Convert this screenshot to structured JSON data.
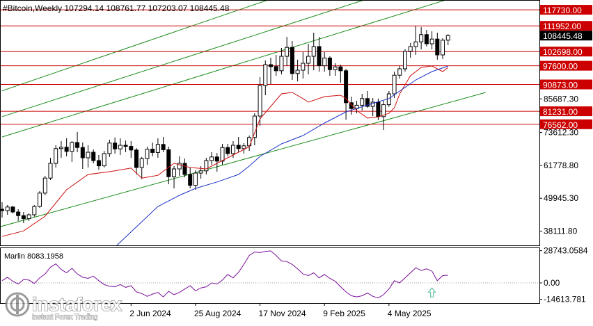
{
  "chart_data": {
    "type": "candlestick",
    "symbol": "#Bitcoin,Weekly",
    "ohlc_readout": "107294.14 108761.77 107203.07 108445.48",
    "price_axis": {
      "range": [
        33000,
        121000
      ],
      "ticks": [
        38111.8,
        49945.3,
        61778.8,
        73612.3,
        85687.3
      ]
    },
    "time_labels": [
      "2 Jun 2024",
      "25 Aug 2024",
      "17 Nov 2024",
      "9 Feb 2025",
      "4 May 2025"
    ],
    "levels": [
      {
        "label": "117730.00",
        "value": 117730
      },
      {
        "label": "111952.00",
        "value": 111952
      },
      {
        "label": "102698.00",
        "value": 102698
      },
      {
        "label": "97600.00",
        "value": 97600
      },
      {
        "label": "90873.00",
        "value": 90873
      },
      {
        "label": "81231.00",
        "value": 81231
      },
      {
        "label": "76562.00",
        "value": 76562
      }
    ],
    "current_price": "108445.48",
    "candles": [
      [
        46000,
        48500,
        43000,
        45500
      ],
      [
        45500,
        47500,
        44000,
        46800
      ],
      [
        46800,
        47200,
        44500,
        45000
      ],
      [
        45000,
        46000,
        41800,
        43700
      ],
      [
        43700,
        45000,
        41000,
        42600
      ],
      [
        42600,
        44500,
        41800,
        44000
      ],
      [
        44000,
        47500,
        43300,
        47000
      ],
      [
        47000,
        52500,
        46500,
        51800
      ],
      [
        51800,
        58000,
        51000,
        57200
      ],
      [
        57200,
        64500,
        56500,
        62500
      ],
      [
        62500,
        69000,
        61000,
        67800
      ],
      [
        67800,
        70500,
        64500,
        68300
      ],
      [
        68300,
        71500,
        65000,
        66800
      ],
      [
        66800,
        70500,
        63000,
        70000
      ],
      [
        70000,
        73800,
        66500,
        68200
      ],
      [
        68200,
        70000,
        60500,
        64500
      ],
      [
        64500,
        69000,
        61000,
        66500
      ],
      [
        66500,
        67500,
        62500,
        63500
      ],
      [
        63500,
        65500,
        60200,
        61600
      ],
      [
        61600,
        67000,
        61000,
        66000
      ],
      [
        66000,
        71000,
        64800,
        69800
      ],
      [
        69800,
        71800,
        66000,
        67700
      ],
      [
        67700,
        71500,
        65500,
        69000
      ],
      [
        69000,
        70700,
        66500,
        68600
      ],
      [
        68600,
        70500,
        64500,
        67300
      ],
      [
        67300,
        68000,
        58500,
        61000
      ],
      [
        61000,
        64800,
        56800,
        64200
      ],
      [
        64200,
        68500,
        62000,
        67600
      ],
      [
        67600,
        70000,
        65000,
        66400
      ],
      [
        66400,
        71500,
        64500,
        69300
      ],
      [
        69300,
        72000,
        66500,
        67400
      ],
      [
        67400,
        68500,
        55000,
        57700
      ],
      [
        57700,
        61500,
        53500,
        60500
      ],
      [
        60500,
        65000,
        58000,
        62500
      ],
      [
        62500,
        64200,
        57500,
        58500
      ],
      [
        58500,
        61000,
        53500,
        54600
      ],
      [
        54600,
        60000,
        53000,
        59000
      ],
      [
        59000,
        61500,
        57000,
        59800
      ],
      [
        59800,
        64500,
        58500,
        63500
      ],
      [
        63500,
        66500,
        62000,
        64800
      ],
      [
        64800,
        66200,
        59500,
        63300
      ],
      [
        63300,
        69500,
        62000,
        68200
      ],
      [
        68200,
        69500,
        65000,
        66000
      ],
      [
        66000,
        70500,
        64500,
        69000
      ],
      [
        69000,
        72000,
        66500,
        67800
      ],
      [
        67800,
        69800,
        66000,
        68800
      ],
      [
        68800,
        72500,
        67000,
        71800
      ],
      [
        71800,
        80500,
        69000,
        79500
      ],
      [
        79500,
        93500,
        76000,
        90500
      ],
      [
        90500,
        99500,
        87000,
        98000
      ],
      [
        98000,
        100500,
        91000,
        97300
      ],
      [
        97300,
        101500,
        94000,
        95800
      ],
      [
        95800,
        104000,
        94500,
        101000
      ],
      [
        101000,
        108000,
        97500,
        104200
      ],
      [
        104200,
        106500,
        92500,
        94800
      ],
      [
        94800,
        99800,
        92000,
        96000
      ],
      [
        96000,
        102500,
        93000,
        98500
      ],
      [
        98500,
        105500,
        94500,
        101000
      ],
      [
        101000,
        109500,
        96000,
        104500
      ],
      [
        104500,
        108000,
        95500,
        97600
      ],
      [
        97600,
        102500,
        95500,
        100400
      ],
      [
        100400,
        101000,
        94000,
        96200
      ],
      [
        96200,
        98500,
        94000,
        97200
      ],
      [
        97200,
        98000,
        91500,
        95800
      ],
      [
        95800,
        96500,
        78200,
        84300
      ],
      [
        84300,
        86500,
        80000,
        82200
      ],
      [
        82200,
        85000,
        80500,
        83400
      ],
      [
        83400,
        87500,
        81500,
        85800
      ],
      [
        85800,
        88500,
        82500,
        83000
      ],
      [
        83000,
        86000,
        79500,
        84500
      ],
      [
        84500,
        85800,
        78000,
        79300
      ],
      [
        79300,
        85000,
        74500,
        83600
      ],
      [
        83600,
        88500,
        82800,
        87500
      ],
      [
        87500,
        95500,
        86000,
        94200
      ],
      [
        94200,
        97500,
        93000,
        96500
      ],
      [
        96500,
        103500,
        95500,
        102800
      ],
      [
        102800,
        105800,
        100500,
        104500
      ],
      [
        104500,
        112000,
        101500,
        106200
      ],
      [
        106200,
        111500,
        103500,
        108800
      ],
      [
        108800,
        110500,
        104500,
        105500
      ],
      [
        105500,
        110000,
        103500,
        107200
      ],
      [
        107200,
        109500,
        99800,
        101500
      ],
      [
        101500,
        107500,
        100000,
        106800
      ],
      [
        106800,
        109000,
        105000,
        108445
      ]
    ],
    "ma_red": [
      [
        0,
        36200
      ],
      [
        4,
        38200
      ],
      [
        8,
        43500
      ],
      [
        12,
        53000
      ],
      [
        16,
        58500
      ],
      [
        20,
        59500
      ],
      [
        24,
        60800
      ],
      [
        26,
        57200
      ],
      [
        29,
        58200
      ],
      [
        32,
        62500
      ],
      [
        35,
        61000
      ],
      [
        38,
        60500
      ],
      [
        41,
        63500
      ],
      [
        44,
        66500
      ],
      [
        46,
        68500
      ],
      [
        48,
        78500
      ],
      [
        50,
        83000
      ],
      [
        52,
        87500
      ],
      [
        54,
        88000
      ],
      [
        56,
        85800
      ],
      [
        57,
        84500
      ],
      [
        60,
        86500
      ],
      [
        63,
        87000
      ],
      [
        64,
        85800
      ],
      [
        66,
        81500
      ],
      [
        68,
        78800
      ],
      [
        70,
        79200
      ],
      [
        72,
        80500
      ],
      [
        73,
        82500
      ],
      [
        74,
        87500
      ],
      [
        76,
        94000
      ],
      [
        78,
        97000
      ],
      [
        80,
        97500
      ],
      [
        82,
        95500
      ],
      [
        83,
        97000
      ]
    ],
    "ma_blue": [
      [
        20,
        30500
      ],
      [
        26,
        41500
      ],
      [
        29,
        47000
      ],
      [
        33,
        51000
      ],
      [
        36,
        53500
      ],
      [
        40,
        55800
      ],
      [
        44,
        58500
      ],
      [
        46,
        61500
      ],
      [
        48,
        65000
      ],
      [
        52,
        69500
      ],
      [
        56,
        72500
      ],
      [
        60,
        77000
      ],
      [
        64,
        81000
      ],
      [
        68,
        83500
      ],
      [
        72,
        85800
      ],
      [
        74,
        88500
      ],
      [
        77,
        92500
      ],
      [
        80,
        95500
      ],
      [
        83,
        97500
      ]
    ],
    "channels": [
      {
        "points": [
          [
            0,
            72000
          ],
          [
            83,
            121500
          ]
        ]
      },
      {
        "points": [
          [
            0,
            79300
          ],
          [
            83,
            131000
          ]
        ]
      },
      {
        "points": [
          [
            0,
            88600
          ],
          [
            90,
            148000
          ]
        ]
      },
      {
        "points": [
          [
            -6,
            36700
          ],
          [
            90,
            88000
          ]
        ]
      }
    ],
    "indicator": {
      "label": "Marlin 8083.1958",
      "axis_labels": [
        "28743.0584",
        "0.00",
        "-14613.781"
      ],
      "range": [
        -18000,
        31000
      ],
      "ticks": [
        28743.0584,
        0,
        -14613.781
      ],
      "values": [
        2000,
        5000,
        1500,
        -1000,
        3000,
        2500,
        -500,
        4500,
        8000,
        14000,
        17000,
        12000,
        9000,
        13000,
        8000,
        5000,
        4000,
        6000,
        2000,
        -1500,
        -3000,
        -3500,
        -1500,
        -4000,
        -2500,
        -8000,
        -9500,
        -12000,
        -10000,
        -8500,
        -12500,
        -7500,
        -10500,
        -8500,
        -5500,
        -2500,
        -7000,
        -4500,
        -3500,
        0,
        -1000,
        2500,
        7500,
        4500,
        9500,
        16500,
        24500,
        27500,
        27000,
        28000,
        28500,
        24500,
        19500,
        19000,
        16500,
        12500,
        8000,
        6500,
        9000,
        4500,
        7500,
        4000,
        1500,
        -3500,
        -8000,
        -11500,
        -12500,
        -11500,
        -9000,
        -12000,
        -13500,
        -10500,
        -5500,
        2000,
        0,
        4500,
        9000,
        13500,
        11000,
        12500,
        10500,
        2000,
        6500,
        6800
      ],
      "marker": "up-arrow"
    },
    "colors": {
      "bull": "#ffffff",
      "bear": "#000000",
      "wick": "#000000",
      "level": "#cc0000",
      "channel": "#1a8c1a",
      "ma_red": "#cc1010",
      "ma_blue": "#1c31c8",
      "indicator": "#7a0f99",
      "indicator_zero": "#9a9a9a",
      "marker": "#66c2a9",
      "current_box": "#000000"
    }
  },
  "watermark": {
    "brand": "instaforex",
    "tagline": "Instant Forex Trading"
  }
}
